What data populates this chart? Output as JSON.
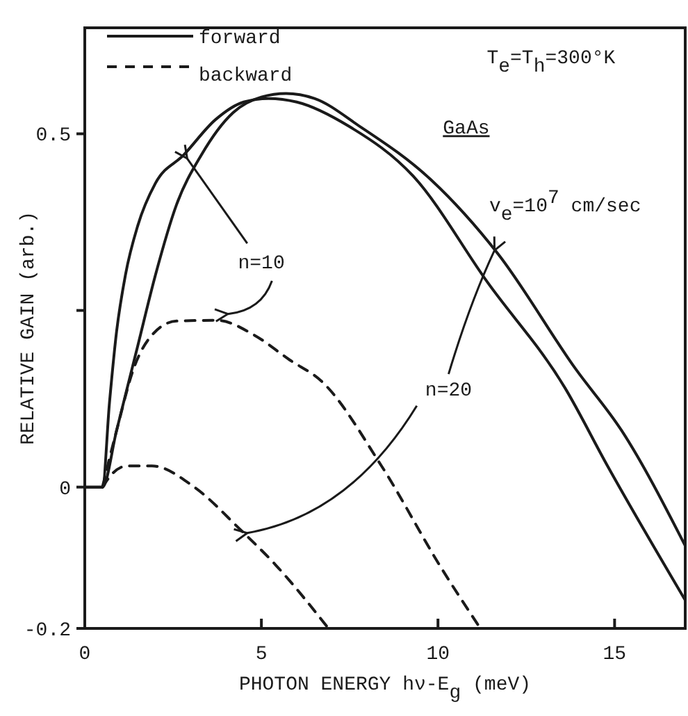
{
  "chart_data": {
    "type": "line",
    "xlabel": "PHOTON ENERGY hν-E$_{g}$ (meV)",
    "ylabel": "RELATIVE GAIN (arb.)",
    "xlim": [
      0,
      17
    ],
    "xticks": [
      0,
      5,
      10,
      15
    ],
    "ylim": [
      -0.2,
      0.65
    ],
    "yticks": [
      -0.2,
      0,
      {
        "value": 0.25,
        "label": null
      },
      0.5
    ],
    "grid": false,
    "legend": "top left",
    "series": [
      {
        "name": "forward",
        "color": "#1a1a1a",
        "line_style": "solid",
        "x": [
          0,
          0.5,
          0.7,
          0.9,
          1.15,
          1.5,
          2.0,
          2.8,
          3.7,
          4.5,
          5.2,
          6,
          7.5,
          9.3,
          11.4,
          13.6,
          14.8,
          17
        ],
        "values": [
          0,
          0,
          0.12,
          0.22,
          0.3,
          0.37,
          0.43,
          0.47,
          0.52,
          0.545,
          0.55,
          0.545,
          0.51,
          0.44,
          0.29,
          0.14,
          0.03,
          -0.16
        ]
      },
      {
        "color": "#1a1a1a",
        "line_style": "solid",
        "x": [
          0,
          0.5,
          0.9,
          1.5,
          2.0,
          2.6,
          3.3,
          4.2,
          5,
          5.7,
          6.5,
          7.8,
          9.8,
          11.7,
          13.9,
          15.2,
          17
        ],
        "values": [
          0,
          0,
          0.08,
          0.2,
          0.3,
          0.4,
          0.47,
          0.53,
          0.552,
          0.557,
          0.55,
          0.51,
          0.435,
          0.33,
          0.167,
          0.08,
          -0.083
        ]
      },
      {
        "name": "backward",
        "color": "#1a1a1a",
        "line_style": "dashed",
        "x": [
          0.5,
          0.9,
          1.4,
          1.9,
          2.6,
          3.75,
          4.8,
          5.8,
          6.7,
          8.4,
          10.1,
          11.2
        ],
        "values": [
          0,
          0.08,
          0.17,
          0.215,
          0.235,
          0.236,
          0.215,
          0.18,
          0.15,
          0.03,
          -0.115,
          -0.2
        ]
      },
      {
        "color": "#1a1a1a",
        "line_style": "dashed",
        "x": [
          0.5,
          0.8,
          1.2,
          1.5,
          1.9,
          3.1,
          4.4,
          5.4,
          6.9
        ],
        "values": [
          0,
          0.02,
          0.03,
          0.03,
          0.03,
          0,
          -0.06,
          -0.11,
          -0.2
        ]
      }
    ],
    "annotations": [
      "T$_{e}$=T$_{h}$=300°K",
      "GaAs",
      "v$_{e}$=10$^{7}$ cm/sec",
      {
        "text": "n=10",
        "x": 2.9,
        "y": 0.465
      },
      {
        "text": "n=20",
        "x": 11.6,
        "y": 0.335
      }
    ]
  }
}
